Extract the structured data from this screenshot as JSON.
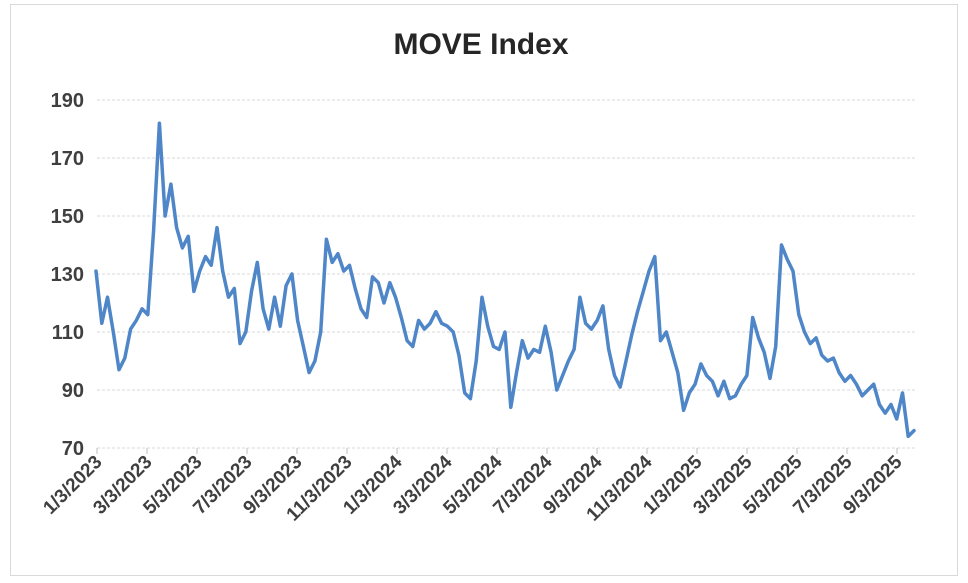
{
  "chart": {
    "title": "MOVE Index"
  },
  "chart_data": {
    "type": "line",
    "title": "MOVE Index",
    "x_start_label": "1/3/2023",
    "x_end_label": "9/3/2025",
    "x_sampling": "weekly samples, 1/3/2023 through late Sep 2025",
    "x_tick_labels": [
      "1/3/2023",
      "3/3/2023",
      "5/3/2023",
      "7/3/2023",
      "9/3/2023",
      "11/3/2023",
      "1/3/2024",
      "3/3/2024",
      "5/3/2024",
      "7/3/2024",
      "9/3/2024",
      "11/3/2024",
      "1/3/2025",
      "3/3/2025",
      "5/3/2025",
      "7/3/2025",
      "9/3/2025"
    ],
    "y_ticks": [
      190,
      170,
      150,
      130,
      110,
      90,
      70
    ],
    "ylim": [
      70,
      190
    ],
    "grid": "horizontal-dashed",
    "legend": "none",
    "series": [
      {
        "name": "MOVE Index",
        "color": "#4E86C8",
        "values": [
          131,
          113,
          122,
          110,
          97,
          101,
          111,
          114,
          118,
          116,
          145,
          182,
          150,
          161,
          146,
          139,
          143,
          124,
          131,
          136,
          133,
          146,
          131,
          122,
          125,
          106,
          110,
          124,
          134,
          118,
          111,
          122,
          112,
          126,
          130,
          114,
          105,
          96,
          100,
          110,
          142,
          134,
          137,
          131,
          133,
          125,
          118,
          115,
          129,
          127,
          120,
          127,
          122,
          115,
          107,
          105,
          114,
          111,
          113,
          117,
          113,
          112,
          110,
          102,
          89,
          87,
          100,
          122,
          112,
          105,
          104,
          110,
          84,
          96,
          107,
          101,
          104,
          103,
          112,
          103,
          90,
          95,
          100,
          104,
          122,
          113,
          111,
          114,
          119,
          104,
          95,
          91,
          100,
          109,
          117,
          124,
          131,
          136,
          107,
          110,
          103,
          96,
          83,
          89,
          92,
          99,
          95,
          93,
          88,
          93,
          87,
          88,
          92,
          95,
          115,
          108,
          103,
          94,
          105,
          140,
          135,
          131,
          116,
          110,
          106,
          108,
          102,
          100,
          101,
          96,
          93,
          95,
          92,
          88,
          90,
          92,
          85,
          82,
          85,
          80,
          89,
          74,
          76
        ]
      }
    ],
    "colors": {
      "line": "#4E86C8",
      "text": "#3F3F3F",
      "title_text": "#262626",
      "grid": "#D9D9D9",
      "axis_tick": "#BFBFBF",
      "frame_border": "#D9D9D9",
      "background": "#FFFFFF"
    }
  }
}
